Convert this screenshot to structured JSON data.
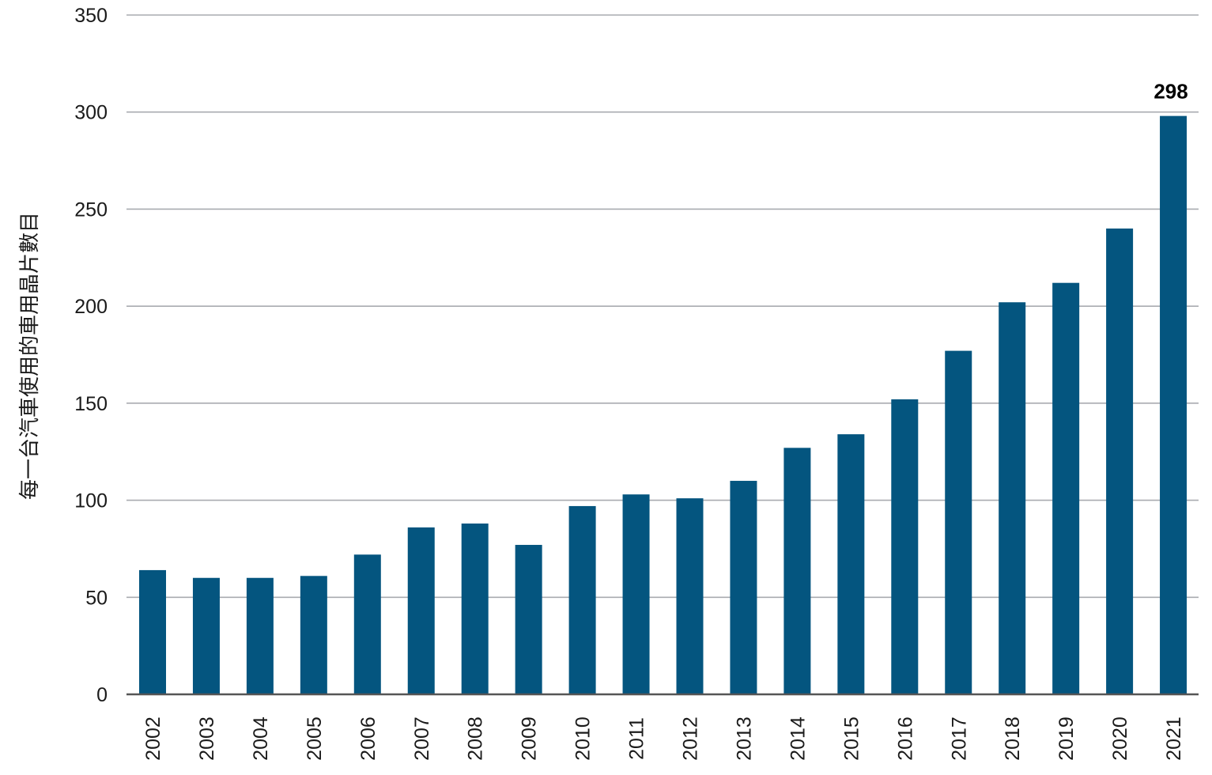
{
  "chart_data": {
    "type": "bar",
    "title": "",
    "xlabel": "",
    "ylabel": "每一台汽車使用的車用晶片數目",
    "ylim": [
      0,
      350
    ],
    "yticks": [
      0,
      50,
      100,
      150,
      200,
      250,
      300,
      350
    ],
    "grid": true,
    "categories": [
      "2002",
      "2003",
      "2004",
      "2005",
      "2006",
      "2007",
      "2008",
      "2009",
      "2010",
      "2011",
      "2012",
      "2013",
      "2014",
      "2015",
      "2016",
      "2017",
      "2018",
      "2019",
      "2020",
      "2021"
    ],
    "values": [
      64,
      60,
      60,
      61,
      72,
      86,
      88,
      77,
      97,
      103,
      101,
      110,
      127,
      134,
      152,
      177,
      202,
      212,
      240,
      298
    ],
    "data_labels": [
      {
        "category": "2021",
        "text": "298"
      }
    ],
    "colors": {
      "bar": "#04557f",
      "grid": "#a9abb0",
      "axis": "#555555"
    }
  }
}
